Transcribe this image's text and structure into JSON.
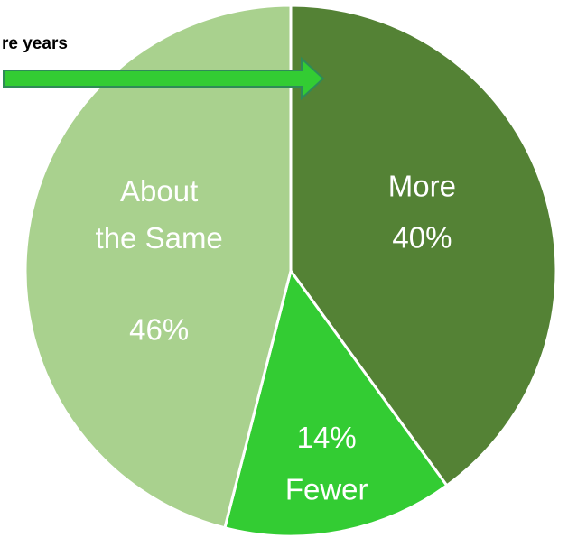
{
  "chart_data": {
    "type": "pie",
    "title": "",
    "slices": [
      {
        "label": "More",
        "value": 40,
        "value_label": "40%",
        "color": "#548235"
      },
      {
        "label": "Fewer",
        "value": 14,
        "value_label": "14%",
        "color": "#33cc33"
      },
      {
        "label": "About the Same",
        "label_lines": [
          "About",
          "the Same"
        ],
        "value": 46,
        "value_label": "46%",
        "color": "#a9d18e"
      }
    ],
    "start_angle_deg": 0,
    "direction": "clockwise",
    "slice_border_color": "#ffffff",
    "label_color": "#ffffff",
    "legend": "none",
    "annotation": {
      "text": "re years",
      "arrow_color": "#33cc33",
      "arrow_border_color": "#2e8b57",
      "points_to": "More"
    }
  }
}
